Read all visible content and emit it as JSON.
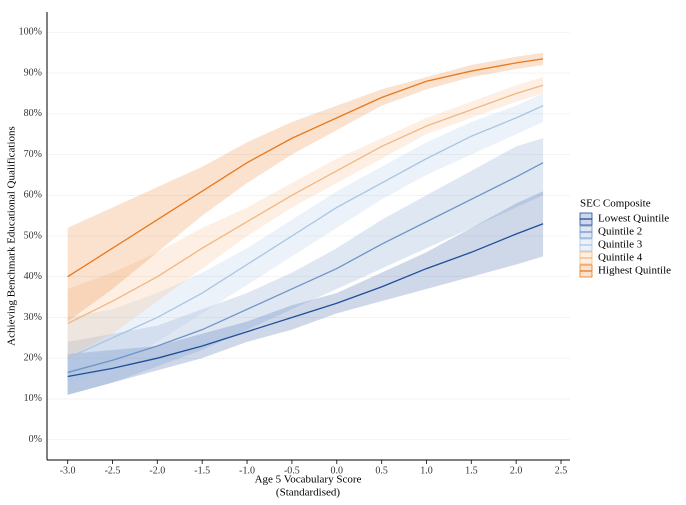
{
  "chart_data": {
    "type": "line",
    "y_label": "Achieving Benchmark Educational Qualifications",
    "x_label": [
      "Age 5 Vocabulary Score",
      "(Standardised)"
    ],
    "legend_title": "SEC Composite",
    "x": [
      -3,
      -2.5,
      -2,
      -1.5,
      -1,
      -0.5,
      0,
      0.5,
      1,
      1.5,
      2,
      2.3
    ],
    "series": [
      {
        "name": "Lowest Quintile",
        "color": "#1f4e99",
        "values": [
          15.5,
          17.5,
          20,
          23,
          26.5,
          30,
          33.5,
          37.5,
          42,
          46,
          50.5,
          53
        ],
        "lower": [
          11,
          14,
          17,
          20,
          24,
          27,
          31,
          34,
          37,
          40,
          43,
          45
        ],
        "upper": [
          21,
          22,
          23,
          26,
          29,
          33,
          36,
          41,
          46,
          52,
          58,
          61
        ]
      },
      {
        "name": "Quintile 2",
        "color": "#6f93c8",
        "values": [
          16.5,
          19.5,
          23,
          27,
          32,
          37,
          42,
          48,
          53.5,
          59,
          64.5,
          68
        ],
        "lower": [
          11,
          14,
          18,
          22,
          27,
          32,
          37,
          42,
          47,
          52,
          57,
          60
        ],
        "upper": [
          24,
          26,
          28,
          32,
          36,
          41,
          47,
          54,
          60,
          66,
          72,
          74
        ]
      },
      {
        "name": "Quintile 3",
        "color": "#a9c4e4",
        "values": [
          20,
          25,
          30,
          36,
          43,
          50,
          57,
          63,
          69,
          74.5,
          79,
          82
        ],
        "lower": [
          13,
          18,
          24,
          31,
          38,
          45,
          52,
          59,
          65,
          70,
          75,
          78
        ],
        "upper": [
          30,
          32,
          36,
          41,
          47,
          54,
          61,
          67,
          73,
          78,
          82,
          85
        ]
      },
      {
        "name": "Quintile 4",
        "color": "#f4b67e",
        "values": [
          28.5,
          34,
          40,
          47,
          53.5,
          60,
          66,
          72,
          77,
          81,
          85,
          87
        ],
        "lower": [
          20,
          26,
          34,
          42,
          50,
          57,
          63,
          69,
          75,
          79,
          83,
          85
        ],
        "upper": [
          37,
          41,
          46,
          52,
          57,
          63,
          69,
          74,
          79,
          83,
          87,
          89
        ]
      },
      {
        "name": "Highest Quintile",
        "color": "#e8791f",
        "values": [
          40,
          47,
          54,
          61,
          68,
          74,
          79,
          84,
          88,
          90.5,
          92.5,
          93.5
        ],
        "lower": [
          29,
          37,
          46,
          55,
          63,
          70,
          76,
          82,
          86,
          89,
          91,
          92
        ],
        "upper": [
          52,
          57,
          62,
          67,
          73,
          78,
          82,
          86,
          89,
          92,
          94,
          95
        ]
      }
    ],
    "xlim": [
      -3.23,
      2.6
    ],
    "ylim": [
      -5,
      105
    ],
    "xticks": [
      {
        "value": -3,
        "label": "-3.0"
      },
      -2.5,
      {
        "value": -2,
        "label": "-2.0"
      },
      -1.5,
      {
        "value": -1,
        "label": "-1.0"
      },
      -0.5,
      {
        "value": 0,
        "label": "0.0"
      },
      0.5,
      {
        "value": 1,
        "label": "1.0"
      },
      1.5,
      {
        "value": 2,
        "label": "2.0"
      },
      2.5
    ],
    "yticks": [
      {
        "value": 0,
        "label": "0%"
      },
      {
        "value": 10,
        "label": "10%"
      },
      {
        "value": 20,
        "label": "20%"
      },
      {
        "value": 30,
        "label": "30%"
      },
      {
        "value": 40,
        "label": "40%"
      },
      {
        "value": 50,
        "label": "50%"
      },
      {
        "value": 60,
        "label": "60%"
      },
      {
        "value": 70,
        "label": "70%"
      },
      {
        "value": 80,
        "label": "80%"
      },
      {
        "value": 90,
        "label": "90%"
      },
      {
        "value": 100,
        "label": "100%"
      }
    ],
    "grid": true,
    "legend": "right"
  }
}
